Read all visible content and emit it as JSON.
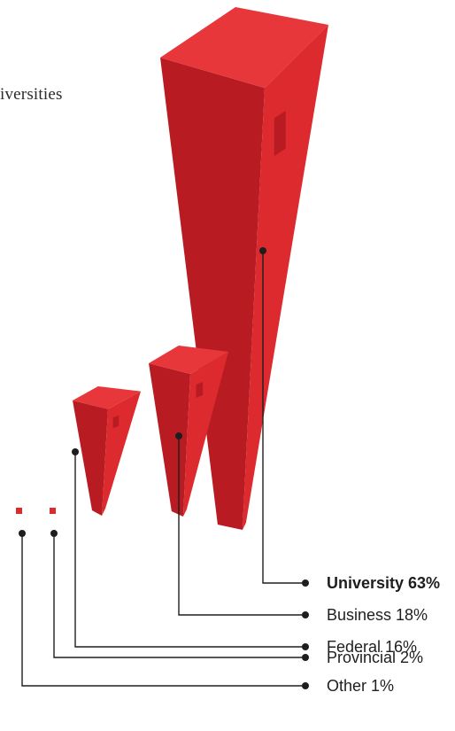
{
  "intro_text": "iversities",
  "chart_data": {
    "type": "pie",
    "title": "",
    "categories": [
      "University",
      "Business",
      "Federal",
      "Provincial",
      "Other"
    ],
    "values": [
      63,
      18,
      16,
      2,
      1
    ],
    "unit": "%",
    "labels": [
      "University 63%",
      "Business 18%",
      "Federal 16%",
      "Provincial 2%",
      "Other 1%"
    ],
    "highlighted": "University",
    "colors": {
      "front": "#b81c22",
      "side": "#dc2a2e",
      "top": "#e8373a",
      "leader": "#1e1e1e"
    }
  }
}
